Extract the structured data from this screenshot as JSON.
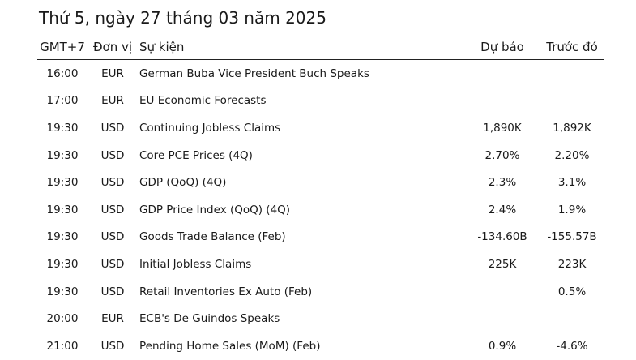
{
  "page": {
    "date_title": "Thứ 5, ngày 27 tháng 03 năm 2025"
  },
  "table": {
    "headers": {
      "time": "GMT+7",
      "currency": "Đơn vị",
      "event": "Sự kiện",
      "forecast": "Dự báo",
      "previous": "Trước đó"
    },
    "rows": [
      {
        "time": "16:00",
        "currency": "EUR",
        "event": "German Buba Vice President Buch Speaks",
        "forecast": "",
        "previous": ""
      },
      {
        "time": "17:00",
        "currency": "EUR",
        "event": "EU Economic Forecasts",
        "forecast": "",
        "previous": ""
      },
      {
        "time": "19:30",
        "currency": "USD",
        "event": "Continuing Jobless Claims",
        "forecast": "1,890K",
        "previous": "1,892K"
      },
      {
        "time": "19:30",
        "currency": "USD",
        "event": "Core PCE Prices (4Q)",
        "forecast": "2.70%",
        "previous": "2.20%"
      },
      {
        "time": "19:30",
        "currency": "USD",
        "event": "GDP (QoQ) (4Q)",
        "forecast": "2.3%",
        "previous": "3.1%"
      },
      {
        "time": "19:30",
        "currency": "USD",
        "event": "GDP Price Index (QoQ) (4Q)",
        "forecast": "2.4%",
        "previous": "1.9%"
      },
      {
        "time": "19:30",
        "currency": "USD",
        "event": "Goods Trade Balance (Feb)",
        "forecast": "-134.60B",
        "previous": "-155.57B"
      },
      {
        "time": "19:30",
        "currency": "USD",
        "event": "Initial Jobless Claims",
        "forecast": "225K",
        "previous": "223K"
      },
      {
        "time": "19:30",
        "currency": "USD",
        "event": "Retail Inventories Ex Auto (Feb)",
        "forecast": "",
        "previous": "0.5%"
      },
      {
        "time": "20:00",
        "currency": "EUR",
        "event": "ECB's De Guindos Speaks",
        "forecast": "",
        "previous": ""
      },
      {
        "time": "21:00",
        "currency": "USD",
        "event": "Pending Home Sales (MoM) (Feb)",
        "forecast": "0.9%",
        "previous": "-4.6%"
      }
    ]
  }
}
